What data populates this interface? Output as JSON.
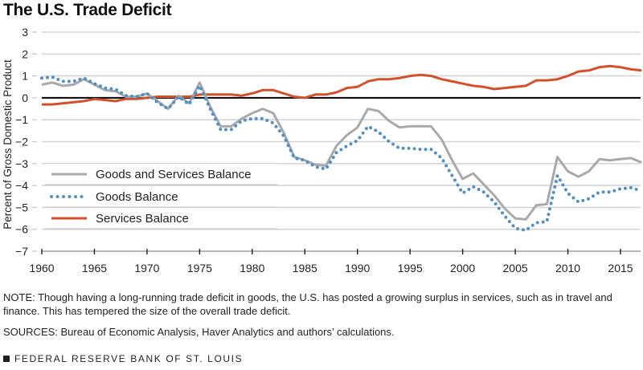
{
  "title": "The U.S. Trade Deficit",
  "note": "NOTE: Though having a long-running trade deficit in goods, the U.S. has posted a growing surplus in services, such as in travel and finance. This has tempered the size of the overall trade deficit.",
  "sources": "SOURCES: Bureau of Economic Analysis, Haver Analytics and authors’ calculations.",
  "footer": "FEDERAL RESERVE BANK OF ST. LOUIS",
  "chart_data": {
    "type": "line",
    "title": "The U.S. Trade Deficit",
    "xlabel": "",
    "ylabel": "Percent of Gross Domestic Product",
    "xlim": [
      1960,
      2017
    ],
    "ylim": [
      -7,
      3
    ],
    "xticks": [
      1960,
      1965,
      1970,
      1975,
      1980,
      1985,
      1990,
      1995,
      2000,
      2005,
      2010,
      2015
    ],
    "yticks": [
      3,
      2,
      1,
      0,
      -1,
      -2,
      -3,
      -4,
      -5,
      -6,
      -7
    ],
    "grid": "horizontal",
    "legend_position": "lower-left",
    "x": [
      1960,
      1961,
      1962,
      1963,
      1964,
      1965,
      1966,
      1967,
      1968,
      1969,
      1970,
      1971,
      1972,
      1973,
      1974,
      1975,
      1976,
      1977,
      1978,
      1979,
      1980,
      1981,
      1982,
      1983,
      1984,
      1985,
      1986,
      1987,
      1988,
      1989,
      1990,
      1991,
      1992,
      1993,
      1994,
      1995,
      1996,
      1997,
      1998,
      1999,
      2000,
      2001,
      2002,
      2003,
      2004,
      2005,
      2006,
      2007,
      2008,
      2009,
      2010,
      2011,
      2012,
      2013,
      2014,
      2015,
      2016,
      2017
    ],
    "series": [
      {
        "name": "Goods and Services Balance",
        "color": "#a7a9ac",
        "style": "solid",
        "values": [
          0.6,
          0.7,
          0.55,
          0.6,
          0.85,
          0.6,
          0.35,
          0.3,
          0.05,
          0.05,
          0.2,
          -0.15,
          -0.5,
          0.1,
          -0.25,
          0.7,
          -0.4,
          -1.3,
          -1.3,
          -0.95,
          -0.7,
          -0.5,
          -0.7,
          -1.6,
          -2.7,
          -2.85,
          -3.05,
          -3.1,
          -2.2,
          -1.7,
          -1.35,
          -0.5,
          -0.6,
          -1.05,
          -1.35,
          -1.3,
          -1.3,
          -1.3,
          -1.9,
          -2.85,
          -3.7,
          -3.45,
          -3.95,
          -4.45,
          -5.05,
          -5.5,
          -5.55,
          -4.9,
          -4.85,
          -2.7,
          -3.35,
          -3.6,
          -3.35,
          -2.8,
          -2.85,
          -2.8,
          -2.75,
          -2.95
        ]
      },
      {
        "name": "Goods Balance",
        "color": "#4f90c6",
        "style": "dotted",
        "values": [
          0.9,
          0.95,
          0.75,
          0.75,
          0.9,
          0.65,
          0.45,
          0.4,
          0.1,
          0.05,
          0.2,
          -0.2,
          -0.5,
          0.05,
          -0.3,
          0.55,
          -0.5,
          -1.45,
          -1.45,
          -1.05,
          -0.95,
          -0.95,
          -1.15,
          -1.75,
          -2.75,
          -2.85,
          -3.15,
          -3.25,
          -2.5,
          -2.2,
          -1.95,
          -1.3,
          -1.55,
          -2.0,
          -2.3,
          -2.3,
          -2.35,
          -2.35,
          -2.75,
          -3.55,
          -4.35,
          -4.05,
          -4.3,
          -4.75,
          -5.4,
          -5.95,
          -6.05,
          -5.7,
          -5.65,
          -3.55,
          -4.35,
          -4.75,
          -4.6,
          -4.3,
          -4.3,
          -4.15,
          -4.1,
          -4.25
        ]
      },
      {
        "name": "Services Balance",
        "color": "#d4502a",
        "style": "solid",
        "values": [
          -0.3,
          -0.3,
          -0.25,
          -0.2,
          -0.15,
          -0.05,
          -0.1,
          -0.15,
          -0.05,
          -0.05,
          0.0,
          0.05,
          0.05,
          0.05,
          0.05,
          0.15,
          0.15,
          0.15,
          0.15,
          0.1,
          0.2,
          0.35,
          0.35,
          0.2,
          0.05,
          0.0,
          0.15,
          0.15,
          0.25,
          0.45,
          0.5,
          0.75,
          0.85,
          0.85,
          0.9,
          1.0,
          1.05,
          1.0,
          0.85,
          0.75,
          0.65,
          0.55,
          0.5,
          0.4,
          0.45,
          0.5,
          0.55,
          0.8,
          0.8,
          0.85,
          1.0,
          1.2,
          1.25,
          1.4,
          1.45,
          1.4,
          1.3,
          1.25
        ]
      }
    ]
  }
}
